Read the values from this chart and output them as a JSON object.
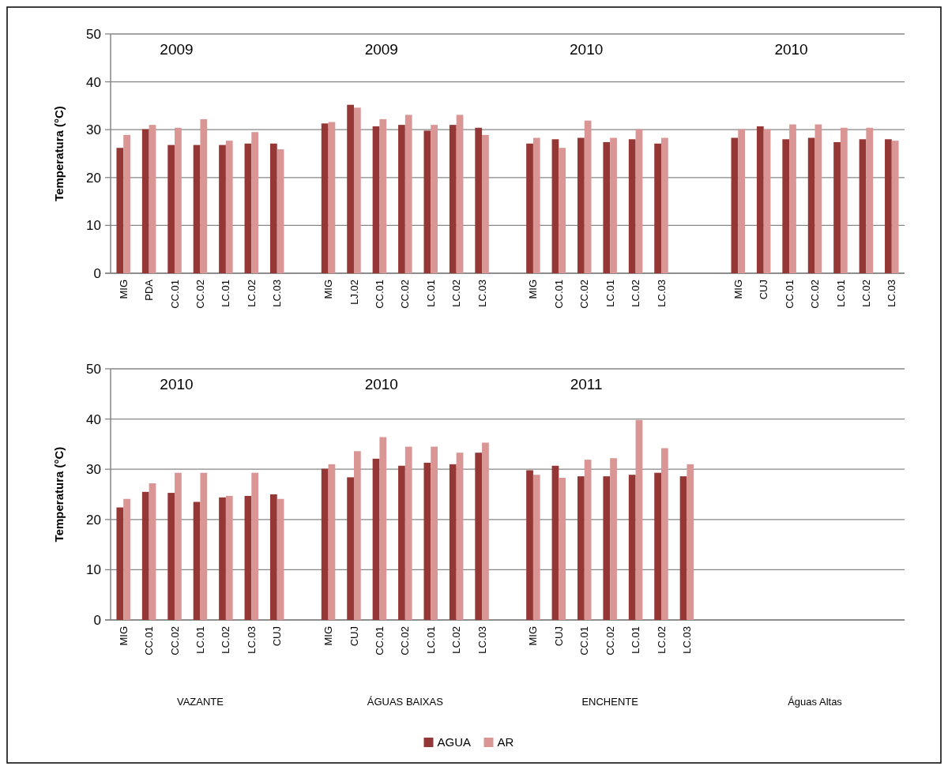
{
  "chart_data": [
    {
      "type": "bar",
      "ylabel": "Temperatura (°C)",
      "categories": [
        "MIG",
        "PDA",
        "CC.01",
        "CC.02",
        "LC.01",
        "LC.02",
        "LC.03",
        null,
        "MIG",
        "LJ.02",
        "CC.01",
        "CC.02",
        "LC.01",
        "LC.02",
        "LC.03",
        null,
        "MIG",
        "CC.01",
        "CC.02",
        "LC.01",
        "LC.02",
        "LC.03",
        null,
        null,
        "MIG",
        "CUJ",
        "CC.01",
        "CC.02",
        "LC.01",
        "LC.02",
        "LC.03"
      ],
      "series": [
        {
          "color": "#953735",
          "values": [
            26.2,
            30.1,
            26.8,
            26.8,
            26.8,
            27.1,
            27.1,
            null,
            31.3,
            35.2,
            30.7,
            31.0,
            29.8,
            31.0,
            30.4,
            null,
            27.1,
            28.0,
            28.3,
            27.4,
            28.0,
            27.1,
            null,
            null,
            28.3,
            30.7,
            28.0,
            28.3,
            27.4,
            28.0,
            28.0
          ]
        },
        {
          "color": "#d99694",
          "values": [
            28.9,
            31.0,
            30.4,
            32.2,
            27.7,
            29.5,
            25.9,
            null,
            31.6,
            34.6,
            32.2,
            33.1,
            31.0,
            33.1,
            28.9,
            null,
            28.3,
            26.2,
            31.9,
            28.3,
            30.1,
            28.3,
            null,
            null,
            30.1,
            30.1,
            31.1,
            31.1,
            30.4,
            30.4,
            27.7
          ]
        }
      ],
      "ylim": [
        0,
        50
      ],
      "yticks": [
        0,
        10,
        20,
        30,
        40,
        50
      ],
      "grid": "y",
      "legend": false,
      "annotations": [
        "2009",
        "2009",
        "2010",
        "2010"
      ]
    },
    {
      "type": "bar",
      "ylabel": "Temperatura (°C)",
      "categories": [
        "MIG",
        "CC.01",
        "CC.02",
        "LC.01",
        "LC.02",
        "LC.03",
        "CUJ",
        null,
        "MIG",
        "CUJ",
        "CC.01",
        "CC.02",
        "LC.01",
        "LC.02",
        "LC.03",
        null,
        "MIG",
        "CUJ",
        "CC.01",
        "CC.02",
        "LC.01",
        "LC.02",
        "LC.03",
        null,
        null,
        null,
        null,
        null,
        null,
        null,
        null
      ],
      "series": [
        {
          "name": "AGUA",
          "color": "#953735",
          "values": [
            22.4,
            25.5,
            25.3,
            23.5,
            24.4,
            24.7,
            25.0,
            null,
            30.1,
            28.4,
            32.1,
            30.7,
            31.3,
            31.0,
            33.3,
            null,
            29.8,
            30.7,
            28.6,
            28.6,
            28.9,
            29.3,
            28.6,
            null,
            null,
            null,
            null,
            null,
            null,
            null,
            null
          ]
        },
        {
          "name": "AR",
          "color": "#d99694",
          "values": [
            24.1,
            27.2,
            29.3,
            29.3,
            24.7,
            29.3,
            24.1,
            null,
            31.0,
            33.6,
            36.4,
            34.5,
            34.5,
            33.3,
            35.3,
            null,
            28.9,
            28.3,
            31.9,
            32.2,
            39.8,
            34.2,
            31.0,
            null,
            null,
            null,
            null,
            null,
            null,
            null,
            null
          ]
        }
      ],
      "ylim": [
        0,
        50
      ],
      "yticks": [
        0,
        10,
        20,
        30,
        40,
        50
      ],
      "grid": "y",
      "legend": "bottom",
      "annotations": [
        "2010",
        "2010",
        "2011",
        "VAZANTE",
        "ÁGUAS BAIXAS",
        "ENCHENTE",
        "Águas Altas"
      ]
    }
  ]
}
